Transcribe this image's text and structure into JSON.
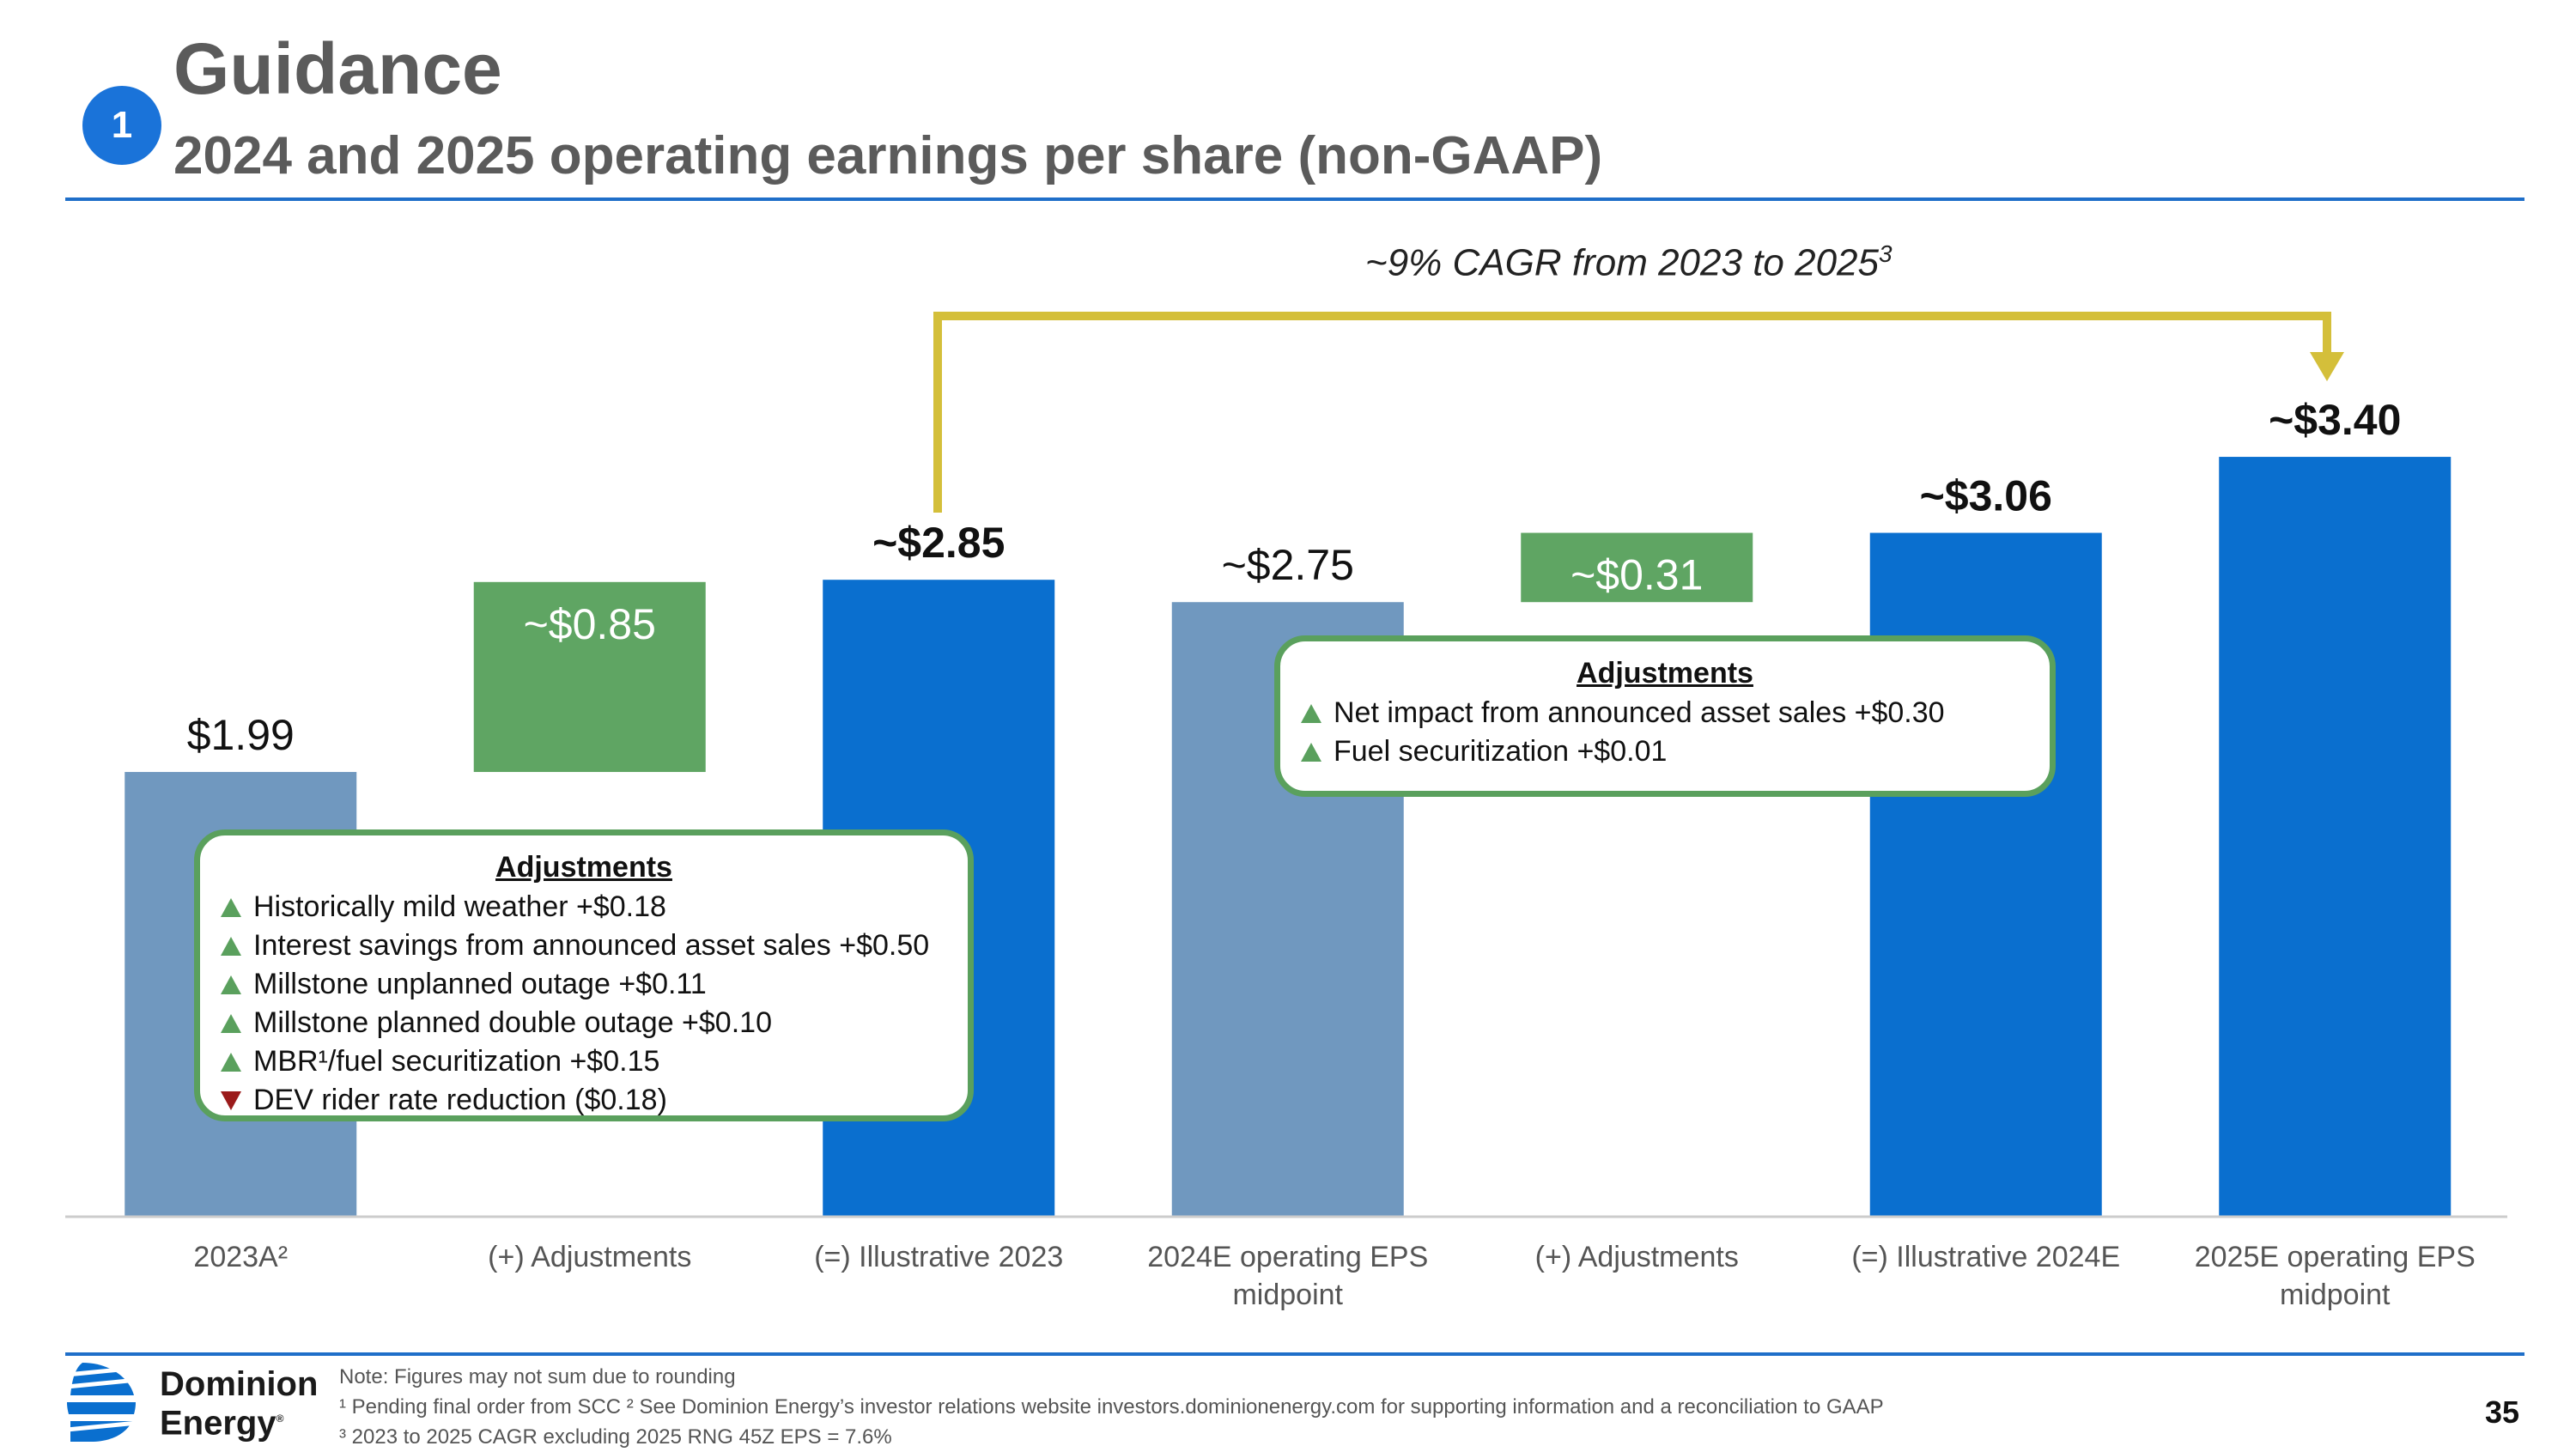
{
  "header": {
    "badge": "1",
    "title": "Guidance",
    "subtitle": "2024 and 2025 operating earnings per share (non-GAAP)"
  },
  "cagr": {
    "text": "~9% CAGR from 2023 to 2025",
    "footnote_mark": "3"
  },
  "chart_data": {
    "type": "bar",
    "subtype": "waterfall",
    "categories": [
      "2023A²",
      "(+) Adjustments",
      "(=) Illustrative 2023",
      "2024E operating EPS midpoint",
      "(+) Adjustments",
      "(=) Illustrative 2024E",
      "2025E operating EPS midpoint"
    ],
    "bars": [
      {
        "kind": "total",
        "start": 0,
        "value": 1.99,
        "label": "$1.99",
        "color": "#7098bf",
        "label_bold": false
      },
      {
        "kind": "delta",
        "start": 1.99,
        "value": 0.85,
        "label": "~$0.85",
        "color": "#5fa563",
        "label_bold": false,
        "label_inside": true
      },
      {
        "kind": "total",
        "start": 0,
        "value": 2.85,
        "label": "~$2.85",
        "color": "#0a6fcf",
        "label_bold": true
      },
      {
        "kind": "total",
        "start": 0,
        "value": 2.75,
        "label": "~$2.75",
        "color": "#7098bf",
        "label_bold": false
      },
      {
        "kind": "delta",
        "start": 2.75,
        "value": 0.31,
        "label": "~$0.31",
        "color": "#5fa563",
        "label_bold": false,
        "label_inside": true
      },
      {
        "kind": "total",
        "start": 0,
        "value": 3.06,
        "label": "~$3.06",
        "color": "#0a6fcf",
        "label_bold": true
      },
      {
        "kind": "total",
        "start": 0,
        "value": 3.4,
        "label": "~$3.40",
        "color": "#0a6fcf",
        "label_bold": true
      }
    ],
    "ylim": [
      0,
      3.6
    ],
    "grid": false,
    "xlabel": "",
    "ylabel": ""
  },
  "adjustments_left": {
    "heading": "Adjustments",
    "items": [
      {
        "dir": "up",
        "text": "Historically mild weather +$0.18"
      },
      {
        "dir": "up",
        "text": "Interest savings from announced asset sales +$0.50"
      },
      {
        "dir": "up",
        "text": "Millstone unplanned outage +$0.11"
      },
      {
        "dir": "up",
        "text": "Millstone planned double outage +$0.10"
      },
      {
        "dir": "up",
        "text": "MBR¹/fuel securitization +$0.15"
      },
      {
        "dir": "down",
        "text": "DEV rider rate reduction ($0.18)"
      }
    ]
  },
  "adjustments_right": {
    "heading": "Adjustments",
    "items": [
      {
        "dir": "up",
        "text": "Net impact from announced asset sales +$0.30"
      },
      {
        "dir": "up",
        "text": "Fuel securitization +$0.01"
      }
    ]
  },
  "footer": {
    "logo_line1": "Dominion",
    "logo_line2": "Energy",
    "note1": "Note: Figures may not sum due to rounding",
    "note2": "¹ Pending final order from SCC ² See Dominion Energy’s investor relations website investors.dominionenergy.com for supporting information and a reconciliation to GAAP",
    "note3": "³ 2023 to 2025 CAGR excluding 2025 RNG 45Z EPS = 7.6%",
    "page": "35"
  },
  "colors": {
    "accent_blue": "#0a6fcf",
    "muted_blue": "#7098bf",
    "green": "#5fa563",
    "arrow_gold": "#d4bf3a",
    "rule_blue": "#1f6fc9"
  }
}
